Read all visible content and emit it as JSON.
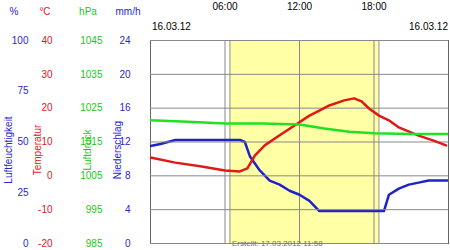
{
  "chart_data": {
    "type": "line",
    "dates": [
      "16.03.12",
      "16.03.12"
    ],
    "caption": "Erstellt: 17.03.2012 11:58",
    "xlim": [
      0,
      24
    ],
    "xticks": [
      {
        "value": 6,
        "label": "06:00"
      },
      {
        "value": 12,
        "label": "12:00"
      },
      {
        "value": 18,
        "label": "18:00"
      }
    ],
    "daylight": [
      6.4,
      18.4
    ],
    "axes": {
      "y": {
        "label": "Luftfeuchtigkeit",
        "unit": "%",
        "color": "#2828d0",
        "ylim": [
          0,
          100
        ],
        "yticks": [
          0,
          25,
          50,
          75,
          100
        ]
      },
      "y2": {
        "label": "Temperatur",
        "unit": "°C",
        "color": "#e01818",
        "ylim": [
          -20,
          40
        ],
        "yticks": [
          -20,
          -10,
          0,
          10,
          20,
          30,
          40
        ],
        "grid": true
      },
      "y3": {
        "label": "Luftdruck",
        "unit": "hPa",
        "color": "#18c818",
        "ylim": [
          985,
          1045
        ],
        "yticks": [
          985,
          995,
          1005,
          1015,
          1025,
          1035,
          1045
        ]
      },
      "y4": {
        "label": "Niederschlag",
        "unit": "mm/h",
        "color": "#2828d0",
        "ylim": [
          0,
          24
        ],
        "yticks": [
          0,
          4,
          8,
          12,
          16,
          20,
          24
        ]
      }
    },
    "series": [
      {
        "axis": "y3",
        "color": "#22e022",
        "x": [
          0,
          3,
          6,
          9,
          12,
          14,
          16,
          18,
          21,
          24
        ],
        "values": [
          1021.4,
          1021,
          1020.5,
          1020.5,
          1020.2,
          1019,
          1018,
          1017.6,
          1017.4,
          1017.4
        ]
      },
      {
        "axis": "y",
        "color": "#1e22c8",
        "x": [
          0,
          0.8,
          2,
          4,
          6,
          7.2,
          7.6,
          8,
          8.8,
          9.6,
          10.4,
          11.2,
          12,
          12.8,
          13.6,
          18,
          18.8,
          19.2,
          20,
          20.8,
          21.6,
          22.4,
          24
        ],
        "values": [
          48,
          49,
          51,
          51,
          51,
          51,
          50,
          43,
          36,
          31,
          29,
          26,
          24,
          21,
          16,
          16,
          16,
          24,
          27,
          29,
          30,
          31,
          31
        ]
      },
      {
        "axis": "y2",
        "color": "#e01818",
        "x": [
          0,
          2,
          4,
          6,
          7.2,
          7.8,
          8.4,
          9.2,
          10.4,
          11.6,
          12.8,
          13.6,
          14.4,
          15.6,
          16.4,
          17,
          17.6,
          18.4,
          19.2,
          20,
          21.6,
          22.8,
          23.8
        ],
        "values": [
          5.4,
          3.9,
          2.8,
          1.6,
          1.3,
          2.2,
          6,
          9,
          12,
          14.9,
          17.8,
          19.3,
          20.8,
          22.3,
          22.9,
          22,
          19.9,
          17.8,
          16.4,
          14.3,
          11.9,
          10.4,
          9
        ]
      }
    ]
  }
}
